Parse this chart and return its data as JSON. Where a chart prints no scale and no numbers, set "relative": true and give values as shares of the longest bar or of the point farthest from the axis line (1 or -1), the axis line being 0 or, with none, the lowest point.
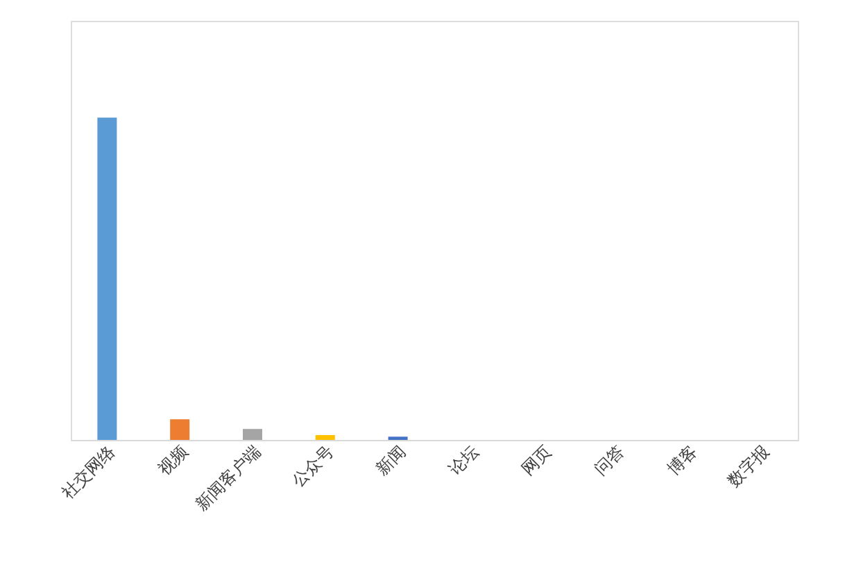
{
  "chart_data": {
    "type": "bar",
    "relative": true,
    "categories": [
      "社交网络",
      "视频",
      "新闻客户端",
      "公众号",
      "新闻",
      "论坛",
      "网页",
      "问答",
      "博客",
      "数字报"
    ],
    "values": [
      1,
      0.064,
      0.034,
      0.015,
      0.01,
      0,
      0,
      0,
      0,
      0
    ],
    "colors": [
      "#5b9bd5",
      "#ed7d31",
      "#a5a5a5",
      "#ffc000",
      "#4472c4",
      "#70ad47",
      "#255e91",
      "#9e480e",
      "#636363",
      "#997300"
    ],
    "grid": false,
    "legend": false
  }
}
